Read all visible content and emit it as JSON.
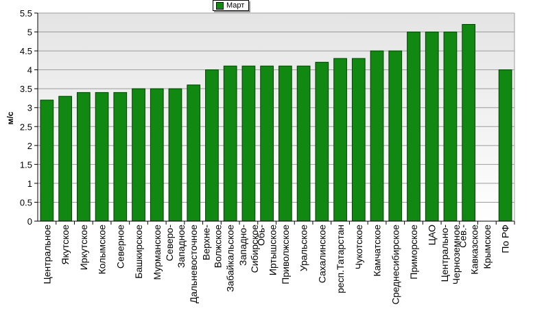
{
  "chart_data": {
    "type": "bar",
    "ylabel": "м/с",
    "ylim": [
      0,
      5.5
    ],
    "yticks": [
      "0",
      "0.5",
      "1",
      "1.5",
      "2",
      "2.5",
      "3",
      "3.5",
      "4",
      "4.5",
      "5",
      "5.5"
    ],
    "legend_position": "top-center",
    "grid": true,
    "categories": [
      "Центральное",
      "Якутское",
      "Иркутское",
      "Колымское",
      "Северное",
      "Башкирское",
      "Мурманское",
      "Северо-\nЗападное",
      "Дальневосточное",
      "Верхне-\nВолжское",
      "Забайкальское",
      "Западно-\nСибирское",
      "Обь-\nИртышское",
      "Приволжское",
      "Уральское",
      "Сахалинское",
      "респ.Татарстан",
      "Чукотское",
      "Камчатское",
      "Среднесибирское",
      "Приморское",
      "ЦАО",
      "Центрально-\nЧерноземное",
      "Сев.-\nКавказское",
      "Крымское",
      "По РФ"
    ],
    "series": [
      {
        "name": "Март",
        "color": "#118811",
        "values": [
          3.2,
          3.3,
          3.4,
          3.4,
          3.4,
          3.5,
          3.5,
          3.5,
          3.6,
          4.0,
          4.1,
          4.1,
          4.1,
          4.1,
          4.1,
          4.2,
          4.3,
          4.3,
          4.5,
          4.5,
          5.0,
          5.0,
          5.0,
          5.2,
          null,
          4.0
        ]
      }
    ]
  }
}
